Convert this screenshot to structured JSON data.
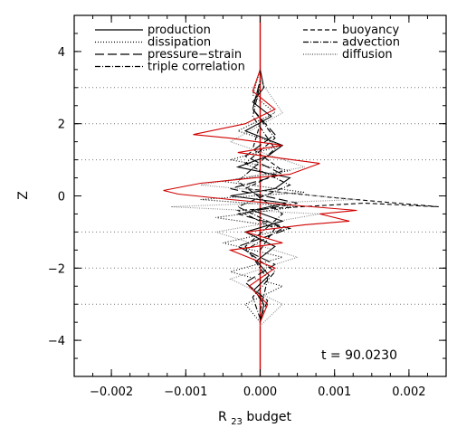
{
  "chart_data": {
    "type": "line",
    "title": "",
    "xlabel": "R",
    "xlabel_subscript": "23",
    "xlabel_suffix": " budget",
    "ylabel": "Z",
    "xlim": [
      -0.0025,
      0.0025
    ],
    "ylim": [
      -5,
      5
    ],
    "xticks": [
      -0.002,
      -0.001,
      0.0,
      0.001,
      0.002
    ],
    "xtick_labels": [
      "−0.002",
      "−0.001",
      "0.000",
      "0.001",
      "0.002"
    ],
    "yticks": [
      -4,
      -2,
      0,
      2,
      4
    ],
    "ytick_labels": [
      "−4",
      "−2",
      "0",
      "2",
      "4"
    ],
    "reference_lines_z": [
      -3,
      -2,
      -1,
      1,
      2,
      3
    ],
    "annotation": "t = 90.0230",
    "legend_position": "top",
    "series": [
      {
        "name": "production",
        "style": "solid",
        "color": "#000000",
        "x": [
          0.0,
          5e-05,
          -8e-05,
          0.00012,
          -5e-05,
          0.0002,
          -0.0002,
          0.0003,
          -0.0001,
          0.00035,
          -0.0004,
          0.0002,
          0.0004,
          -0.0003,
          0.0001,
          0.0003,
          -0.0002,
          0.00015,
          -0.0001,
          5e-05,
          0.0
        ],
        "z": [
          -3.5,
          -3.0,
          -2.6,
          -2.2,
          -1.8,
          -1.4,
          -1.0,
          -0.7,
          -0.4,
          -0.2,
          0.0,
          0.2,
          0.5,
          0.8,
          1.1,
          1.4,
          1.8,
          2.2,
          2.6,
          3.0,
          3.5
        ]
      },
      {
        "name": "dissipation",
        "style": "dotted",
        "color": "#000000",
        "x": [
          0.0,
          -0.0002,
          0.0003,
          -0.0004,
          0.0003,
          -0.0005,
          0.0004,
          -0.0006,
          0.0005,
          -0.0008,
          0.0006,
          -0.0005,
          0.0004,
          -0.0004,
          0.0003,
          -0.0003,
          0.0002,
          -0.0001,
          0.0
        ],
        "z": [
          -3.5,
          -3.0,
          -2.5,
          -2.1,
          -1.7,
          -1.3,
          -0.9,
          -0.6,
          -0.3,
          -0.1,
          0.1,
          0.4,
          0.7,
          1.0,
          1.4,
          1.8,
          2.3,
          2.8,
          3.5
        ]
      },
      {
        "name": "pressure−strain",
        "style": "longdash",
        "color": "#000000",
        "x": [
          0.0,
          0.0001,
          -0.0002,
          0.0002,
          -0.0003,
          0.0004,
          -0.0003,
          0.0005,
          -0.0004,
          0.0003,
          -0.0002,
          0.0002,
          -0.0001,
          0.0
        ],
        "z": [
          -3.4,
          -2.9,
          -2.4,
          -1.9,
          -1.4,
          -0.9,
          -0.5,
          -0.2,
          0.2,
          0.6,
          1.1,
          1.7,
          2.4,
          3.2
        ]
      },
      {
        "name": "triple correlation",
        "style": "dashdot",
        "color": "#000000",
        "x": [
          0.0,
          -0.0001,
          0.0002,
          -0.0002,
          0.0003,
          -0.0003,
          0.0004,
          -0.0002,
          0.0002,
          -0.0001,
          0.0
        ],
        "z": [
          -3.4,
          -2.8,
          -2.1,
          -1.5,
          -0.9,
          -0.3,
          0.3,
          0.9,
          1.6,
          2.4,
          3.2
        ]
      },
      {
        "name": "buoyancy",
        "style": "dashed",
        "color": "#000000",
        "x": [
          0.0,
          0.0002,
          -0.0003,
          0.0014,
          0.0024,
          0.001,
          -0.0002,
          0.0003,
          -0.0001,
          0.0
        ],
        "z": [
          -1.5,
          -0.9,
          -0.4,
          -0.2,
          -0.3,
          -0.05,
          0.2,
          0.7,
          1.3,
          2.0
        ]
      },
      {
        "name": "advection",
        "style": "dashdot",
        "color": "#000000",
        "x": [
          0.0,
          0.0001,
          -0.0002,
          0.0003,
          -0.0003,
          0.0002,
          -0.0001,
          0.0
        ],
        "z": [
          -3.2,
          -2.3,
          -1.4,
          -0.5,
          0.4,
          1.3,
          2.2,
          3.1
        ]
      },
      {
        "name": "diffusion",
        "style": "finedotted",
        "color": "#888888",
        "x": [
          0.0,
          0.0003,
          -0.0004,
          0.0005,
          -0.0006,
          0.0008,
          -0.0012,
          0.0013,
          -0.0008,
          0.0006,
          -0.0004,
          0.0003,
          0.0
        ],
        "z": [
          -3.6,
          -3.0,
          -2.3,
          -1.7,
          -1.0,
          -0.5,
          -0.3,
          -0.1,
          0.3,
          0.8,
          1.5,
          2.3,
          3.2
        ]
      },
      {
        "name": "",
        "style": "solid",
        "color": "#d00000",
        "x": [
          0.0,
          0.0001,
          -0.00015,
          0.0002,
          -0.0004,
          0.0003,
          -0.0002,
          0.0006,
          0.0012,
          0.0008,
          0.0013,
          0.0004,
          -0.0004,
          -0.0011,
          -0.0013,
          -0.0008,
          0.0004,
          0.0008,
          -0.0003,
          0.0003,
          -0.0004,
          -0.0009,
          -0.0002,
          0.0002,
          -0.0001,
          0.0
        ],
        "z": [
          -3.5,
          -3.0,
          -2.5,
          -2.0,
          -1.5,
          -1.3,
          -1.0,
          -0.8,
          -0.7,
          -0.5,
          -0.4,
          -0.25,
          -0.1,
          0.05,
          0.15,
          0.35,
          0.6,
          0.9,
          1.2,
          1.4,
          1.6,
          1.7,
          2.0,
          2.4,
          2.9,
          3.5
        ]
      }
    ]
  }
}
